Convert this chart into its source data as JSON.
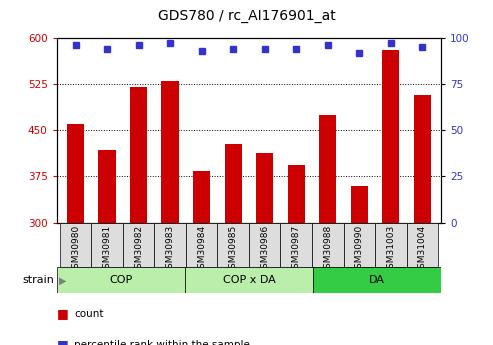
{
  "title": "GDS780 / rc_AI176901_at",
  "categories": [
    "GSM30980",
    "GSM30981",
    "GSM30982",
    "GSM30983",
    "GSM30984",
    "GSM30985",
    "GSM30986",
    "GSM30987",
    "GSM30988",
    "GSM30990",
    "GSM31003",
    "GSM31004"
  ],
  "bar_values": [
    460,
    418,
    520,
    530,
    383,
    428,
    413,
    393,
    474,
    360,
    580,
    508
  ],
  "percentile_values": [
    96,
    94,
    96,
    97,
    93,
    94,
    94,
    94,
    96,
    92,
    97,
    95
  ],
  "bar_color": "#cc0000",
  "percentile_color": "#3333cc",
  "ylim_left": [
    300,
    600
  ],
  "ylim_right": [
    0,
    100
  ],
  "yticks_left": [
    300,
    375,
    450,
    525,
    600
  ],
  "yticks_right": [
    0,
    25,
    50,
    75,
    100
  ],
  "groups": [
    {
      "label": "COP",
      "start": 0,
      "end": 4,
      "color": "#bbeeaa"
    },
    {
      "label": "COP x DA",
      "start": 4,
      "end": 8,
      "color": "#bbeeaa"
    },
    {
      "label": "DA",
      "start": 8,
      "end": 12,
      "color": "#33cc44"
    }
  ],
  "group_label_prefix": "strain",
  "legend_count_label": "count",
  "legend_percentile_label": "percentile rank within the sample",
  "bg_color": "#ffffff",
  "plot_bg_color": "#ffffff",
  "tick_bg_color": "#dddddd",
  "grid_color": "#000000",
  "axis_left_color": "#cc0000",
  "axis_right_color": "#3333cc"
}
